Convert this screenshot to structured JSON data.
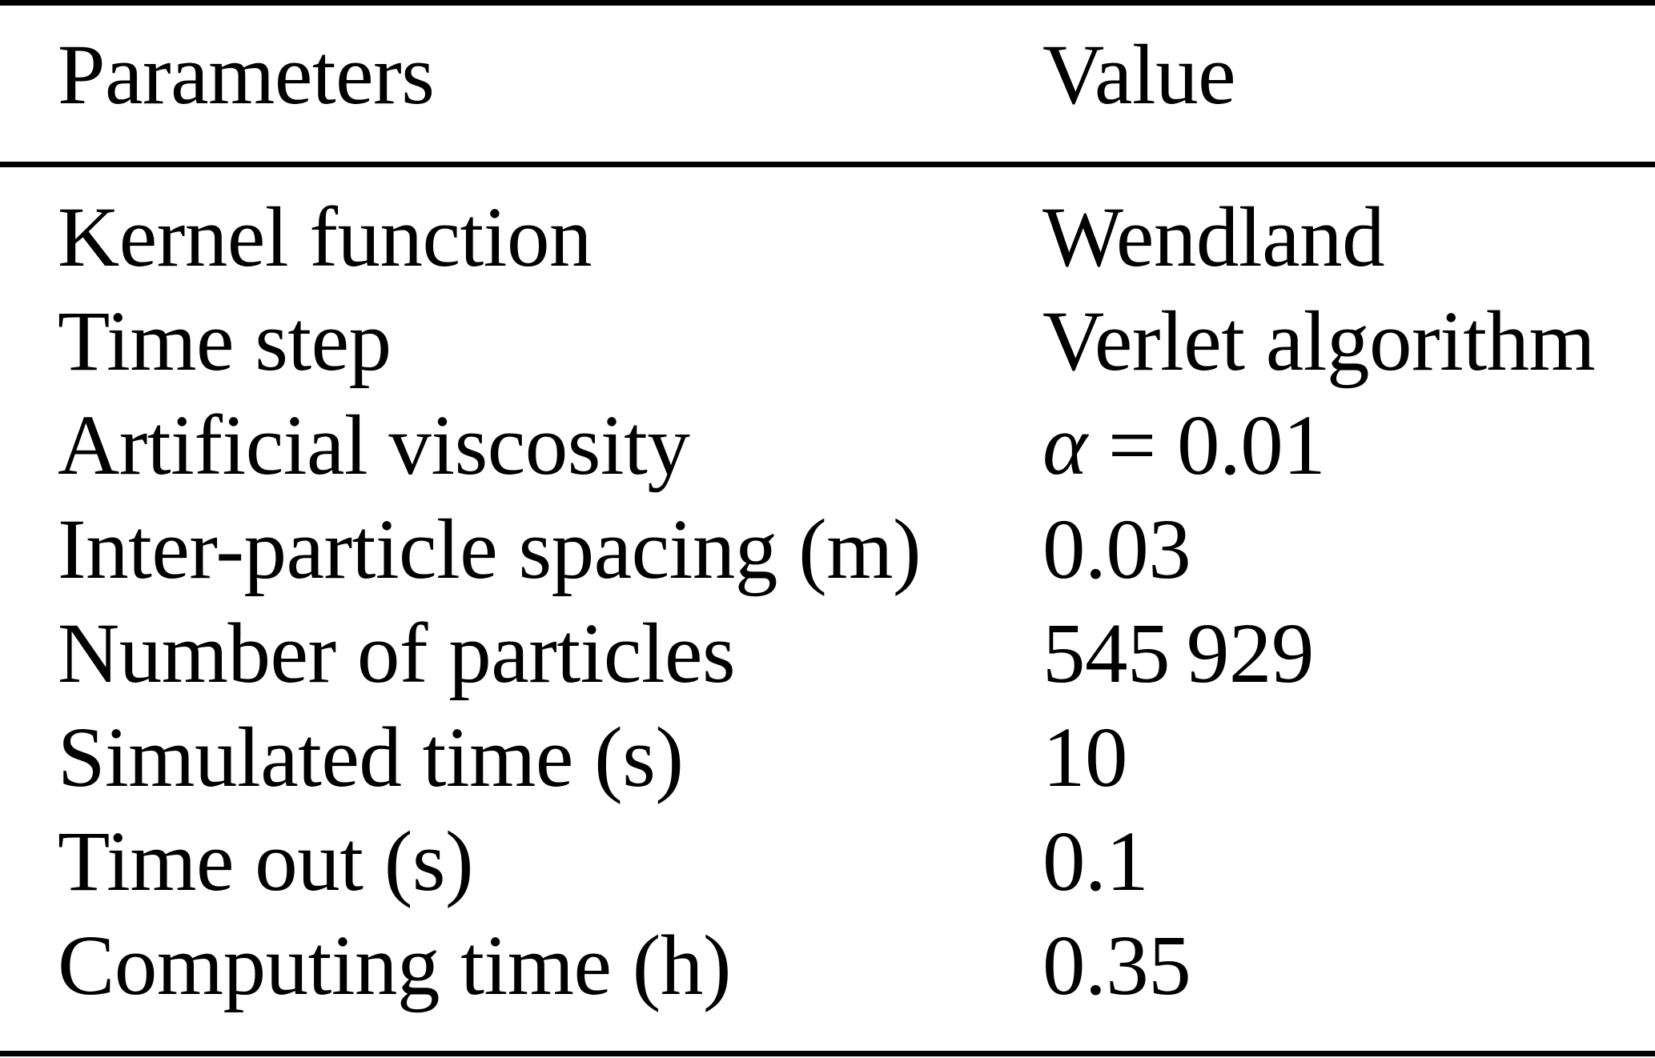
{
  "table": {
    "columns": [
      "Parameters",
      "Value"
    ],
    "rows": [
      {
        "param": "Kernel function",
        "value": "Wendland"
      },
      {
        "param": "Time step",
        "value": "Verlet algorithm"
      },
      {
        "param": "Artificial viscosity",
        "value_parts": [
          "α",
          " = 0.01"
        ]
      },
      {
        "param": "Inter-particle spacing (m)",
        "value": "0.03"
      },
      {
        "param": "Number of particles",
        "value": "545 929"
      },
      {
        "param": "Simulated time (s)",
        "value": "10"
      },
      {
        "param": "Time out (s)",
        "value": "0.1"
      },
      {
        "param": "Computing time (h)",
        "value": "0.35"
      }
    ],
    "colors": {
      "text": "#000000",
      "rule": "#000000",
      "background": "#ffffff"
    }
  }
}
